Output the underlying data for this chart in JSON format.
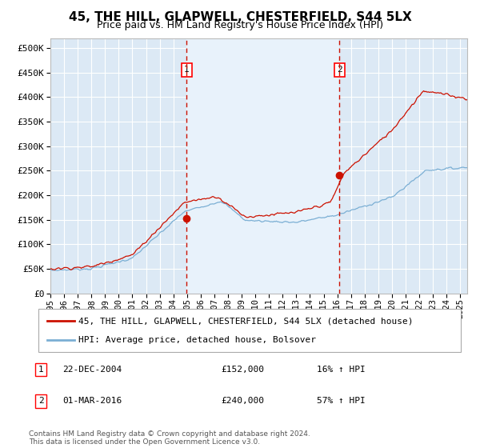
{
  "title": "45, THE HILL, GLAPWELL, CHESTERFIELD, S44 5LX",
  "subtitle": "Price paid vs. HM Land Registry's House Price Index (HPI)",
  "background_color": "#ffffff",
  "plot_bg_color": "#dce9f5",
  "grid_color": "#ffffff",
  "hpi_line_color": "#7bafd4",
  "price_line_color": "#cc1100",
  "marker_color": "#cc1100",
  "vline_color": "#cc1100",
  "ytick_values": [
    0,
    50000,
    100000,
    150000,
    200000,
    250000,
    300000,
    350000,
    400000,
    450000,
    500000
  ],
  "ylim": [
    0,
    520000
  ],
  "xlim_start": 1995.0,
  "xlim_end": 2025.5,
  "sale1_x": 2004.98,
  "sale1_y": 152000,
  "sale1_label": "1",
  "sale1_date": "22-DEC-2004",
  "sale1_price": "£152,000",
  "sale1_hpi": "16% ↑ HPI",
  "sale2_x": 2016.17,
  "sale2_y": 240000,
  "sale2_label": "2",
  "sale2_date": "01-MAR-2016",
  "sale2_price": "£240,000",
  "sale2_hpi": "57% ↑ HPI",
  "legend_line1": "45, THE HILL, GLAPWELL, CHESTERFIELD, S44 5LX (detached house)",
  "legend_line2": "HPI: Average price, detached house, Bolsover",
  "footer": "Contains HM Land Registry data © Crown copyright and database right 2024.\nThis data is licensed under the Open Government Licence v3.0.",
  "xtick_years": [
    1995,
    1996,
    1997,
    1998,
    1999,
    2000,
    2001,
    2002,
    2003,
    2004,
    2005,
    2006,
    2007,
    2008,
    2009,
    2010,
    2011,
    2012,
    2013,
    2014,
    2015,
    2016,
    2017,
    2018,
    2019,
    2020,
    2021,
    2022,
    2023,
    2024,
    2025
  ]
}
